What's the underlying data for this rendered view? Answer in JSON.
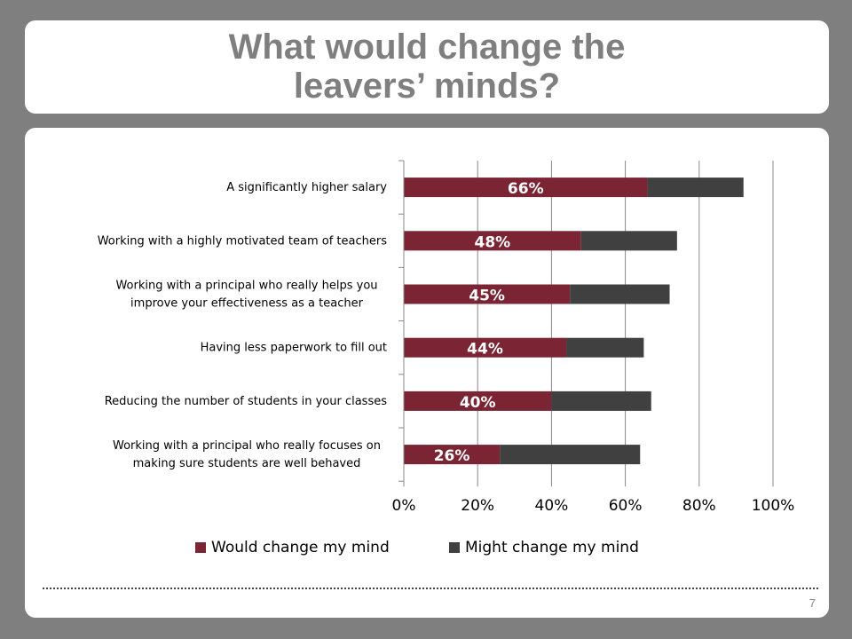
{
  "slide": {
    "title_line1": "What would change the",
    "title_line2": "leavers’ minds?",
    "page_number": "7"
  },
  "colors": {
    "would": "#7b2433",
    "might": "#404040",
    "grid": "#888888"
  },
  "chart_data": {
    "type": "bar",
    "orientation": "horizontal",
    "stacked": true,
    "title": "",
    "xlabel": "",
    "ylabel": "",
    "xlim": [
      0,
      100
    ],
    "x_ticks": [
      "0%",
      "20%",
      "40%",
      "60%",
      "80%",
      "100%"
    ],
    "categories": [
      [
        "A significantly higher salary"
      ],
      [
        "Working with a highly motivated team of teachers"
      ],
      [
        "Working with a principal who really helps you",
        "improve your effectiveness as a teacher"
      ],
      [
        "Having less paperwork to fill out"
      ],
      [
        "Reducing the number of students in your classes"
      ],
      [
        "Working with a principal who really focuses on",
        "making sure students are well behaved"
      ]
    ],
    "series": [
      {
        "name": "Would change my mind",
        "values": [
          66,
          48,
          45,
          44,
          40,
          26
        ],
        "labels": [
          "66%",
          "48%",
          "45%",
          "44%",
          "40%",
          "26%"
        ]
      },
      {
        "name": "Might change my mind",
        "values": [
          26,
          26,
          27,
          21,
          27,
          38
        ]
      }
    ],
    "gridlines": true,
    "legend_position": "bottom"
  }
}
